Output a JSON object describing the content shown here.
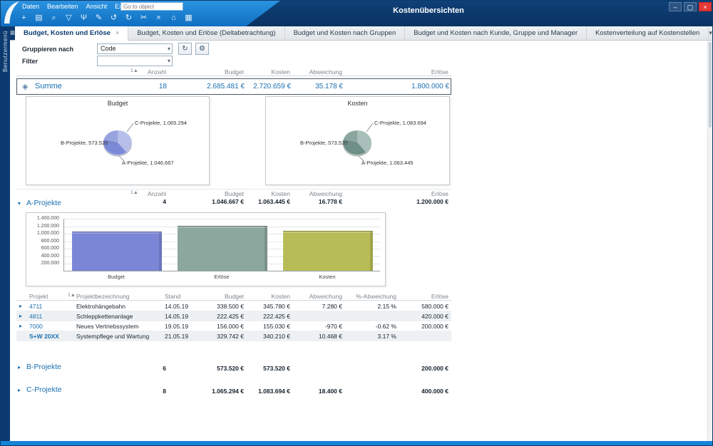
{
  "window": {
    "title": "Kostenübersichten"
  },
  "titlebar": {
    "menus": [
      "Daten",
      "Bearbeiten",
      "Ansicht",
      "Extras",
      "?"
    ],
    "goto_placeholder": "Go to object",
    "buttons": {
      "minimize": "–",
      "maximize": "▢",
      "close": "×"
    }
  },
  "toolbar": {
    "icons": [
      {
        "name": "add",
        "glyph": "+"
      },
      {
        "name": "save",
        "glyph": "▤"
      },
      {
        "name": "search",
        "glyph": "⌕"
      },
      {
        "name": "filter",
        "glyph": "▽"
      },
      {
        "name": "branch",
        "glyph": "Ψ"
      },
      {
        "name": "edit",
        "glyph": "✎"
      },
      {
        "name": "undo",
        "glyph": "↺"
      },
      {
        "name": "redo",
        "glyph": "↻"
      },
      {
        "name": "cut",
        "glyph": "✂"
      },
      {
        "name": "delete",
        "glyph": "×"
      },
      {
        "name": "home",
        "glyph": "⌂"
      },
      {
        "name": "grid",
        "glyph": "▦"
      }
    ]
  },
  "sidebar": {
    "label": "Benutzermenü"
  },
  "tabs": {
    "menu_icon": "≡",
    "close_icon": "×",
    "overflow_icon": "▾",
    "items": [
      {
        "label": "Budget, Kosten und Erlöse",
        "active": true
      },
      {
        "label": "Budget, Kosten und Erlöse (Deltabetrachtung)",
        "active": false
      },
      {
        "label": "Budget und Kosten nach Gruppen",
        "active": false
      },
      {
        "label": "Budget und Kosten nach Kunde, Gruppe und Manager",
        "active": false
      },
      {
        "label": "Kostenverteilung auf Kostenstellen",
        "active": false
      }
    ]
  },
  "filters": {
    "group_by_label": "Gruppieren nach",
    "group_by_value": "Code",
    "filter_label": "Filter",
    "filter_value": "",
    "dropdown_icon": "▾"
  },
  "glyphs": {
    "refresh": "↻",
    "settings": "⚙",
    "summe_icon": "◈",
    "chevron_right": "▸",
    "chevron_down": "▾"
  },
  "columns": {
    "sort_badge": "1▲",
    "anzahl": "Anzahl",
    "budget": "Budget",
    "kosten": "Kosten",
    "abweichung": "Abweichung",
    "pct": "%-Abweichung",
    "erloese": "Erlöse",
    "projekt": "Projekt",
    "bezeichnung": "Projektbezeichnung",
    "stand": "Stand"
  },
  "summary": {
    "label": "Summe",
    "anzahl": "18",
    "budget": "2.685.481 €",
    "kosten": "2.720.659 €",
    "abweichung": "35.178 €",
    "erloese": "1.800.000 €"
  },
  "group_a": {
    "label": "A-Projekte",
    "anzahl": "4",
    "budget": "1.046.667 €",
    "kosten": "1.063.445 €",
    "abweichung": "16.778 €",
    "erloese": "1.200.000 €",
    "rows": [
      {
        "projekt": "4711",
        "bezeichnung": "Elektrohängebahn",
        "stand": "14.05.19",
        "budget": "338.500 €",
        "kosten": "345.780 €",
        "abweichung": "7.280 €",
        "pct": "2.15 %",
        "erloese": "580.000 €"
      },
      {
        "projekt": "4811",
        "bezeichnung": "Schleppkettenanlage",
        "stand": "14.05.19",
        "budget": "222.425 €",
        "kosten": "222.425 €",
        "abweichung": "",
        "pct": "",
        "erloese": "420.000 €"
      },
      {
        "projekt": "7000",
        "bezeichnung": "Neues Vertriebssystem",
        "stand": "19.05.19",
        "budget": "156.000 €",
        "kosten": "155.030 €",
        "abweichung": "-970 €",
        "pct": "-0.62 %",
        "erloese": "200.000 €"
      },
      {
        "projekt": "S+W 20XX",
        "bezeichnung": "Systempflege und Wartung",
        "stand": "21.05.19",
        "budget": "329.742 €",
        "kosten": "340.210 €",
        "abweichung": "10.468 €",
        "pct": "3.17 %",
        "erloese": ""
      }
    ]
  },
  "group_b": {
    "label": "B-Projekte",
    "anzahl": "6",
    "budget": "573.520 €",
    "kosten": "573.520 €",
    "abweichung": "",
    "erloese": "200.000 €"
  },
  "group_c": {
    "label": "C-Projekte",
    "anzahl": "8",
    "budget": "1.065.294 €",
    "kosten": "1.083.694 €",
    "abweichung": "18.400 €",
    "erloese": "400.000 €"
  },
  "colors": {
    "accent_blue": "#1a6fb0",
    "titlebar": "#0c3a6e",
    "menubar": "#1583d6",
    "close_red": "#e53935"
  },
  "chart_data": [
    {
      "type": "pie",
      "title": "Budget",
      "slices": [
        {
          "name": "C-Projekte",
          "value": 1065294,
          "label": "C-Projekte, 1.065.294",
          "color": "#b7bfe9"
        },
        {
          "name": "A-Projekte",
          "value": 1046667,
          "label": "A-Projekte, 1.046.667",
          "color": "#7b8ad7"
        },
        {
          "name": "B-Projekte",
          "value": 573520,
          "label": "B-Projekte, 573.520",
          "color": "#98a4e0"
        }
      ]
    },
    {
      "type": "pie",
      "title": "Kosten",
      "slices": [
        {
          "name": "C-Projekte",
          "value": 1083694,
          "label": "C-Projekte, 1.083.694",
          "color": "#a9bfb9"
        },
        {
          "name": "A-Projekte",
          "value": 1063445,
          "label": "A-Projekte, 1.063.445",
          "color": "#6d8f87"
        },
        {
          "name": "B-Projekte",
          "value": 573520,
          "label": "B-Projekte, 573.520",
          "color": "#8ba69e"
        }
      ]
    },
    {
      "type": "bar",
      "categories": [
        "Budget",
        "Erlöse",
        "Kosten"
      ],
      "values": [
        1046667,
        1200000,
        1063445
      ],
      "colors": [
        "#7b86d6",
        "#8ba79e",
        "#b8bc57"
      ],
      "ylim": [
        0,
        1400000
      ],
      "grid": true,
      "yticks": [
        {
          "v": 200000,
          "label": "200.000"
        },
        {
          "v": 400000,
          "label": "400.000"
        },
        {
          "v": 600000,
          "label": "600.000"
        },
        {
          "v": 800000,
          "label": "800.000"
        },
        {
          "v": 1000000,
          "label": "1.000.000"
        },
        {
          "v": 1200000,
          "label": "1.200.000"
        },
        {
          "v": 1400000,
          "label": "1.400.000"
        }
      ]
    }
  ]
}
